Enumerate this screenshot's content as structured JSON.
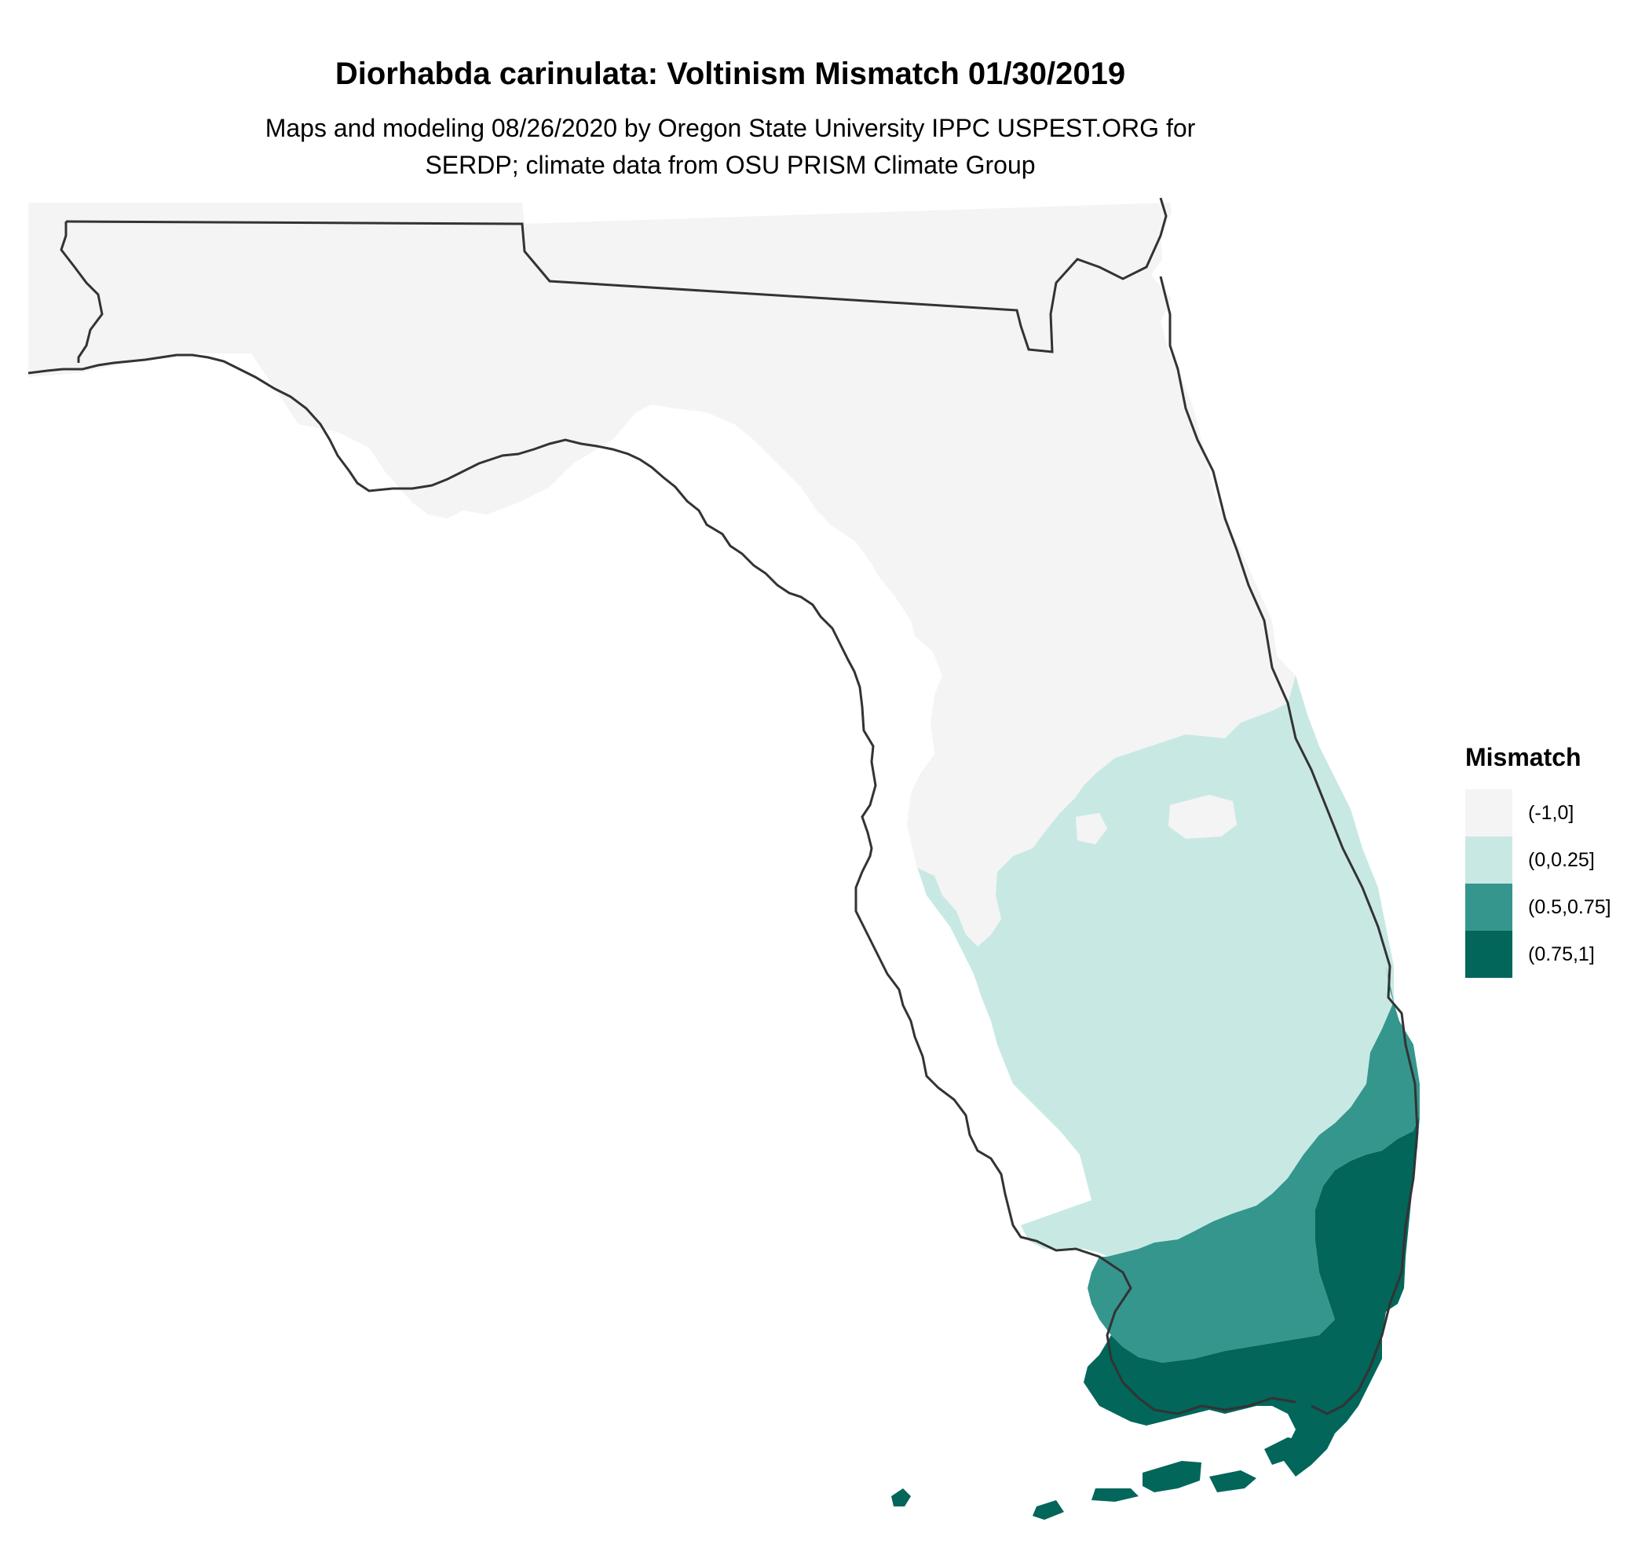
{
  "title": "Diorhabda carinulata: Voltinism Mismatch 01/30/2019",
  "subtitle_lines": [
    "Maps and modeling 08/26/2020 by Oregon State University IPPC USPEST.ORG for",
    "SERDP; climate data from OSU PRISM Climate Group"
  ],
  "legend": {
    "title": "Mismatch",
    "items": [
      {
        "label": "(-1,0]",
        "color": "#f4f4f4"
      },
      {
        "label": "(0,0.25]",
        "color": "#c8e9e3"
      },
      {
        "label": "(0.5,0.75]",
        "color": "#35968e"
      },
      {
        "label": "(0.75,1]",
        "color": "#02665b"
      }
    ]
  },
  "map": {
    "region": "Florida",
    "outline_color": "#333333",
    "background": "#ffffff"
  }
}
